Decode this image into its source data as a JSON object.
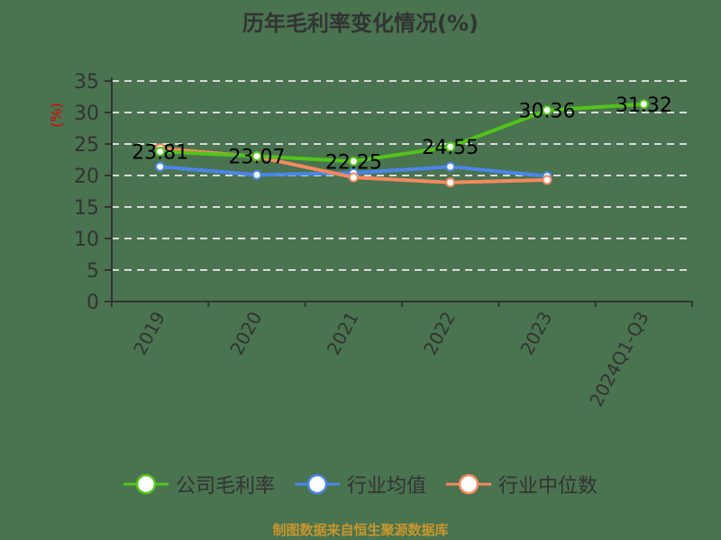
{
  "chart_data": {
    "type": "line",
    "title": "历年毛利率变化情况(%)",
    "ylabel": "(%)",
    "xlabel": "",
    "categories": [
      "2019",
      "2020",
      "2021",
      "2022",
      "2023",
      "2024Q1-Q3"
    ],
    "ylim": [
      0,
      35
    ],
    "yticks": [
      0,
      5,
      10,
      15,
      20,
      25,
      30,
      35
    ],
    "grid": true,
    "legend_position": "bottom",
    "series": [
      {
        "name": "公司毛利率",
        "color": "#52c41a",
        "values": [
          23.81,
          23.07,
          22.25,
          24.55,
          30.36,
          31.32
        ],
        "labels": [
          "23.81",
          "23.07",
          "22.25",
          "24.55",
          "30.36",
          "31.32"
        ]
      },
      {
        "name": "行业均值",
        "color": "#4a86e8",
        "values": [
          21.4,
          20.1,
          20.4,
          21.4,
          19.9,
          null
        ]
      },
      {
        "name": "行业中位数",
        "color": "#f4895f",
        "values": [
          24.3,
          23.0,
          19.7,
          18.9,
          19.3,
          null
        ]
      }
    ]
  },
  "footer": "制图数据来自恒生聚源数据库"
}
